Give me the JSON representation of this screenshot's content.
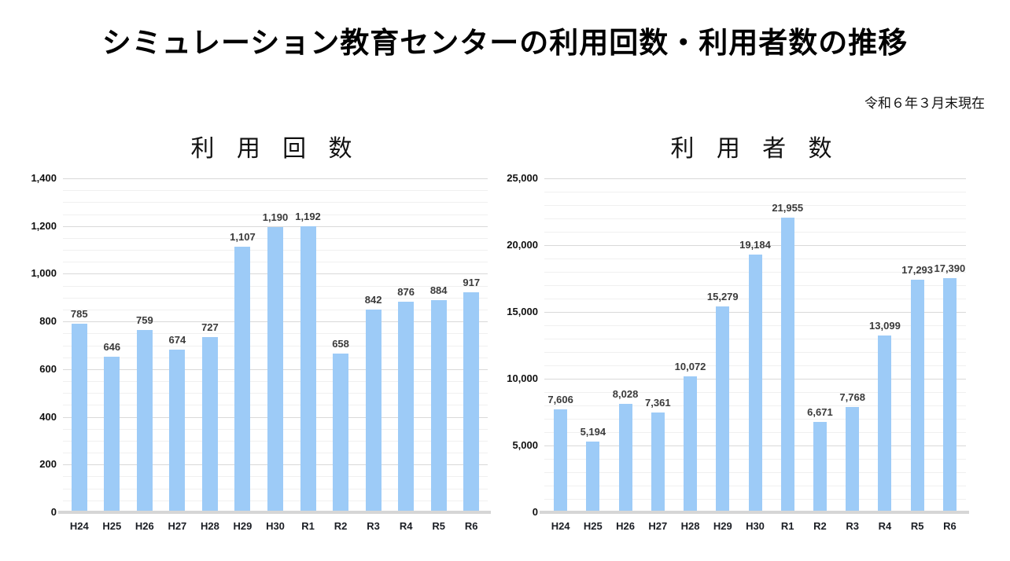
{
  "page": {
    "title": "シミュレーション教育センターの利用回数・利用者数の推移",
    "as_of": "令和６年３月末現在"
  },
  "colors": {
    "bar": "#9dcbf7",
    "grid_major": "#d9d9d9",
    "grid_minor": "#f0f0f0",
    "axis_line": "#d6d6d6",
    "data_label": "#3a3a3a",
    "tick_label": "#101010"
  },
  "chart_data": [
    {
      "type": "bar",
      "title": "利 用 回 数",
      "categories": [
        "H24",
        "H25",
        "H26",
        "H27",
        "H28",
        "H29",
        "H30",
        "R1",
        "R2",
        "R3",
        "R4",
        "R5",
        "R6"
      ],
      "values": [
        785,
        646,
        759,
        674,
        727,
        1107,
        1190,
        1192,
        658,
        842,
        876,
        884,
        917
      ],
      "ylim": [
        0,
        1400
      ],
      "y_major_step": 200,
      "y_minor_step": 50,
      "grid": true,
      "legend": "none",
      "data_labels": true,
      "xlabel": "",
      "ylabel": ""
    },
    {
      "type": "bar",
      "title": "利 用 者 数",
      "categories": [
        "H24",
        "H25",
        "H26",
        "H27",
        "H28",
        "H29",
        "H30",
        "R1",
        "R2",
        "R3",
        "R4",
        "R5",
        "R6"
      ],
      "values": [
        7606,
        5194,
        8028,
        7361,
        10072,
        15279,
        19184,
        21955,
        6671,
        7768,
        13099,
        17293,
        17390
      ],
      "ylim": [
        0,
        25000
      ],
      "y_major_step": 5000,
      "y_minor_step": 1000,
      "grid": true,
      "legend": "none",
      "data_labels": true,
      "xlabel": "",
      "ylabel": ""
    }
  ]
}
